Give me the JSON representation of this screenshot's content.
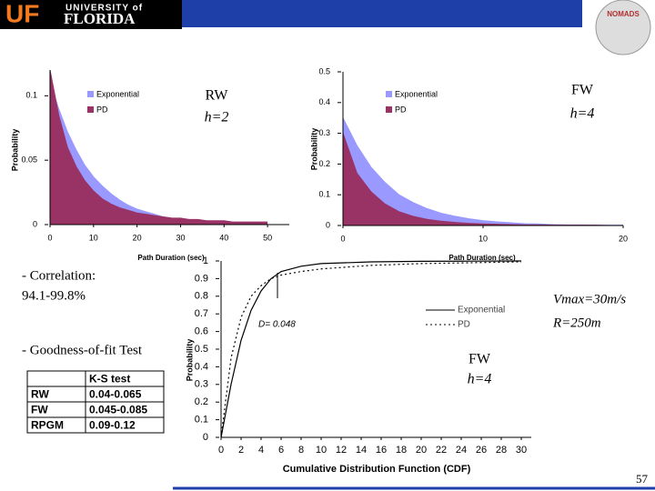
{
  "header": {
    "logo_initials": "UF",
    "logo_university": "UNIVERSITY of",
    "logo_name": "FLORIDA",
    "badge": "NOMADS"
  },
  "notes": {
    "correlation_label": "- Correlation:",
    "correlation_value": "94.1-99.8%",
    "fit_label": "- Goodness-of-fit Test",
    "vmax": "Vmax=30m/s",
    "range": "R=250m"
  },
  "table": {
    "header": [
      "K-S test"
    ],
    "rows": [
      [
        "RW",
        "0.04-0.065"
      ],
      [
        "FW",
        "0.045-0.085"
      ],
      [
        "RPGM",
        "0.09-0.12"
      ]
    ]
  },
  "page_number": "57",
  "chart_data": [
    {
      "type": "area",
      "x_label": "Path Duration (sec)",
      "y_label": "Probability",
      "annotations": [
        "RW",
        "h=2"
      ],
      "x": [
        0,
        2,
        4,
        6,
        8,
        10,
        12,
        14,
        16,
        18,
        20,
        22,
        24,
        26,
        28,
        30,
        32,
        34,
        36,
        38,
        40,
        42,
        44,
        46,
        48,
        50
      ],
      "xlim": [
        0,
        55
      ],
      "xticks": [
        0,
        10,
        20,
        30,
        40,
        50
      ],
      "ylim": [
        0,
        0.12
      ],
      "yticks": [
        0,
        0.05,
        0.1
      ],
      "series": [
        {
          "name": "Exponential",
          "color": "#9999ff",
          "values": [
            0.11,
            0.09,
            0.072,
            0.058,
            0.046,
            0.037,
            0.03,
            0.024,
            0.019,
            0.015,
            0.012,
            0.01,
            0.008,
            0.006,
            0.005,
            0.004,
            0.003,
            0.003,
            0.002,
            0.002,
            0.002,
            0.001,
            0.001,
            0.001,
            0.001,
            0.001
          ]
        },
        {
          "name": "PD",
          "color": "#993366",
          "values": [
            0.12,
            0.085,
            0.06,
            0.045,
            0.034,
            0.026,
            0.02,
            0.016,
            0.013,
            0.011,
            0.009,
            0.008,
            0.007,
            0.006,
            0.005,
            0.005,
            0.004,
            0.004,
            0.003,
            0.003,
            0.003,
            0.002,
            0.002,
            0.002,
            0.002,
            0.002
          ]
        }
      ]
    },
    {
      "type": "area",
      "x_label": "Path Duration (sec)",
      "y_label": "Probability",
      "annotations": [
        "FW",
        "h=4"
      ],
      "x": [
        0,
        1,
        2,
        3,
        4,
        5,
        6,
        7,
        8,
        9,
        10,
        11,
        12,
        13,
        14,
        15,
        16,
        17,
        18,
        19,
        20
      ],
      "xlim": [
        0,
        20
      ],
      "xticks": [
        0,
        10,
        20
      ],
      "ylim": [
        0,
        0.5
      ],
      "yticks": [
        0,
        0.1,
        0.2,
        0.3,
        0.4,
        0.5
      ],
      "series": [
        {
          "name": "Exponential",
          "color": "#9999ff",
          "values": [
            0.35,
            0.26,
            0.19,
            0.14,
            0.1,
            0.075,
            0.055,
            0.04,
            0.03,
            0.022,
            0.016,
            0.012,
            0.009,
            0.006,
            0.005,
            0.003,
            0.002,
            0.002,
            0.001,
            0.001,
            0.001
          ]
        },
        {
          "name": "PD",
          "color": "#993366",
          "values": [
            0.3,
            0.17,
            0.11,
            0.07,
            0.045,
            0.03,
            0.02,
            0.014,
            0.01,
            0.007,
            0.005,
            0.004,
            0.003,
            0.002,
            0.002,
            0.001,
            0.001,
            0.001,
            0.001,
            0,
            0
          ]
        }
      ]
    },
    {
      "type": "line",
      "title": "Cumulative Distribution Function (CDF)",
      "y_label": "Probability",
      "annotations": [
        "D= 0.048",
        "FW",
        "h=4"
      ],
      "x": [
        0,
        1,
        2,
        3,
        4,
        5,
        6,
        8,
        10,
        15,
        20,
        25,
        30
      ],
      "xlim": [
        0,
        31
      ],
      "xticks": [
        0,
        2,
        4,
        6,
        8,
        10,
        12,
        14,
        16,
        18,
        20,
        22,
        24,
        26,
        28,
        30
      ],
      "ylim": [
        0,
        1
      ],
      "yticks": [
        0,
        0.1,
        0.2,
        0.3,
        0.4,
        0.5,
        0.6,
        0.7,
        0.8,
        0.9,
        1
      ],
      "series": [
        {
          "name": "Exponential",
          "color": "#000000",
          "dash": false,
          "values": [
            0,
            0.3,
            0.55,
            0.72,
            0.83,
            0.9,
            0.94,
            0.97,
            0.985,
            0.995,
            0.998,
            0.999,
            1
          ]
        },
        {
          "name": "PD",
          "color": "#000000",
          "dash": true,
          "values": [
            0,
            0.45,
            0.68,
            0.8,
            0.86,
            0.9,
            0.92,
            0.94,
            0.955,
            0.975,
            0.985,
            0.99,
            0.995
          ]
        }
      ]
    }
  ]
}
